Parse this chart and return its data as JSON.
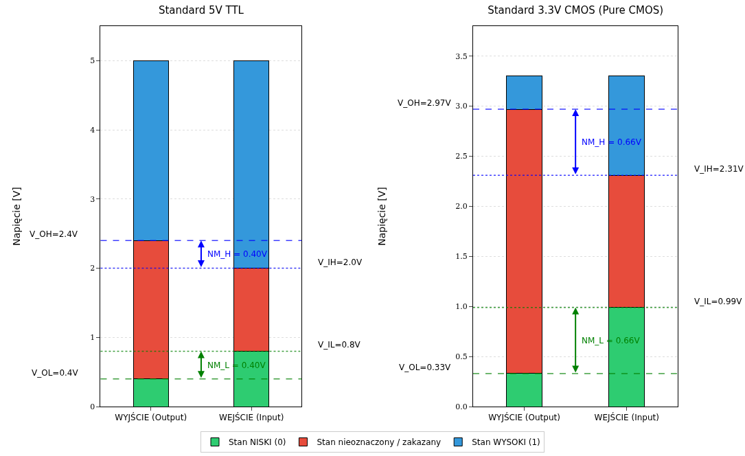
{
  "chart_data": [
    {
      "type": "bar",
      "stacked": true,
      "title": "Standard 5V TTL",
      "ylabel": "Napięcie [V]",
      "categories": [
        "WYJŚCIE (Output)",
        "WEJŚCIE (Input)"
      ],
      "series": [
        {
          "name": "Stan NISKI (0)",
          "color": "#2ecc71",
          "values": [
            0.4,
            0.8
          ]
        },
        {
          "name": "Stan nieoznaczony / zakazany",
          "color": "#e74c3c",
          "values": [
            2.0,
            1.2
          ]
        },
        {
          "name": "Stan WYSOKI (1)",
          "color": "#3498db",
          "values": [
            2.6,
            3.0
          ]
        }
      ],
      "ylim": [
        0,
        5.5
      ],
      "yticks": [
        0,
        1,
        2,
        3,
        4,
        5
      ],
      "grid": "y",
      "legend": "bottom",
      "ref_lines": [
        {
          "axis": "y",
          "value": 2.4,
          "label": "V_OH=2.4V",
          "color": "#0000ff",
          "line_style": "dashed"
        },
        {
          "axis": "y",
          "value": 2.0,
          "label": "V_IH=2.0V",
          "color": "#0000ff",
          "line_style": "dotted"
        },
        {
          "axis": "y",
          "value": 0.8,
          "label": "V_IL=0.8V",
          "color": "#008000",
          "line_style": "dotted"
        },
        {
          "axis": "y",
          "value": 0.4,
          "label": "V_OL=0.4V",
          "color": "#008000",
          "line_style": "dashed"
        }
      ],
      "annotations": [
        "NM_H = 0.40V",
        "NM_L = 0.40V"
      ]
    },
    {
      "type": "bar",
      "stacked": true,
      "title": "Standard 3.3V CMOS (Pure CMOS)",
      "ylabel": "Napięcie [V]",
      "categories": [
        "WYJŚCIE (Output)",
        "WEJŚCIE (Input)"
      ],
      "series": [
        {
          "color": "#2ecc71",
          "values": [
            0.33,
            0.99
          ]
        },
        {
          "color": "#e74c3c",
          "values": [
            2.64,
            1.32
          ]
        },
        {
          "color": "#3498db",
          "values": [
            0.33,
            0.99
          ]
        }
      ],
      "ylim": [
        0,
        3.8
      ],
      "yticks": [
        {
          "value": 0,
          "label": "0.0"
        },
        {
          "value": 0.5,
          "label": "0.5"
        },
        {
          "value": 1,
          "label": "1.0"
        },
        {
          "value": 1.5,
          "label": "1.5"
        },
        {
          "value": 2,
          "label": "2.0"
        },
        {
          "value": 2.5,
          "label": "2.5"
        },
        {
          "value": 3,
          "label": "3.0"
        },
        {
          "value": 3.5,
          "label": "3.5"
        }
      ],
      "grid": "y",
      "ref_lines": [
        {
          "axis": "y",
          "value": 2.97,
          "label": "V_OH=2.97V",
          "color": "#0000ff",
          "line_style": "dashed"
        },
        {
          "axis": "y",
          "value": 2.31,
          "label": "V_IH=2.31V",
          "color": "#0000ff",
          "line_style": "dotted"
        },
        {
          "axis": "y",
          "value": 0.99,
          "label": "V_IL=0.99V",
          "color": "#008000",
          "line_style": "dotted"
        },
        {
          "axis": "y",
          "value": 0.33,
          "label": "V_OL=0.33V",
          "color": "#008000",
          "line_style": "dashed"
        }
      ],
      "annotations": [
        "NM_H = 0.66V",
        "NM_L = 0.66V"
      ]
    }
  ]
}
